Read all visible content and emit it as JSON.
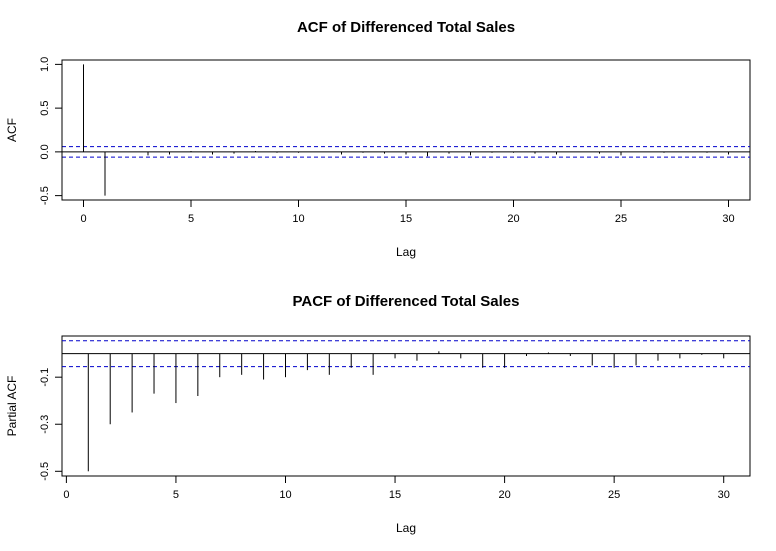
{
  "chart_data": [
    {
      "type": "bar",
      "title": "ACF of Differenced Total Sales",
      "xlabel": "Lag",
      "ylabel": "ACF",
      "xlim": [
        -1,
        31
      ],
      "ylim": [
        -0.55,
        1.05
      ],
      "xticks": [
        0,
        5,
        10,
        15,
        20,
        25,
        30
      ],
      "xtick_labels": [
        "0",
        "5",
        "10",
        "15",
        "20",
        "25",
        "30"
      ],
      "yticks": [
        -0.5,
        0.0,
        0.5,
        1.0
      ],
      "ytick_labels": [
        "-0.5",
        "0.0",
        "0.5",
        "1.0"
      ],
      "confidence_band": [
        -0.06,
        0.06
      ],
      "series": [
        {
          "lags": [
            0,
            1,
            2,
            3,
            4,
            5,
            6,
            7,
            8,
            9,
            10,
            11,
            12,
            13,
            14,
            15,
            16,
            17,
            18,
            19,
            20,
            21,
            22,
            23,
            24,
            25,
            26,
            27,
            28,
            29,
            30
          ],
          "values": [
            1.0,
            -0.5,
            0.0,
            -0.04,
            -0.03,
            0.01,
            -0.03,
            -0.02,
            0.01,
            -0.01,
            -0.01,
            0.0,
            -0.03,
            -0.01,
            -0.02,
            -0.03,
            -0.05,
            -0.02,
            -0.04,
            -0.01,
            -0.01,
            -0.02,
            -0.03,
            0.0,
            -0.02,
            -0.04,
            0.0,
            -0.01,
            0.0,
            -0.01,
            -0.03
          ]
        }
      ],
      "band_color": "#0000cc",
      "grid": false
    },
    {
      "type": "bar",
      "title": "PACF of Differenced Total Sales",
      "xlabel": "Lag",
      "ylabel": "Partial ACF",
      "xlim": [
        -0.2,
        31.2
      ],
      "ylim": [
        -0.52,
        0.075
      ],
      "xticks": [
        0,
        5,
        10,
        15,
        20,
        25,
        30
      ],
      "xtick_labels": [
        "0",
        "5",
        "10",
        "15",
        "20",
        "25",
        "30"
      ],
      "yticks": [
        -0.5,
        -0.3,
        -0.1
      ],
      "ytick_labels": [
        "-0.5",
        "-0.3",
        "-0.1"
      ],
      "confidence_band": [
        -0.055,
        0.055
      ],
      "series": [
        {
          "lags": [
            1,
            2,
            3,
            4,
            5,
            6,
            7,
            8,
            9,
            10,
            11,
            12,
            13,
            14,
            15,
            16,
            17,
            18,
            19,
            20,
            21,
            22,
            23,
            24,
            25,
            26,
            27,
            28,
            29,
            30
          ],
          "values": [
            -0.5,
            -0.3,
            -0.25,
            -0.17,
            -0.21,
            -0.18,
            -0.1,
            -0.09,
            -0.11,
            -0.1,
            -0.07,
            -0.09,
            -0.06,
            -0.09,
            -0.02,
            -0.03,
            0.01,
            -0.02,
            -0.06,
            -0.06,
            -0.01,
            0.005,
            -0.01,
            -0.05,
            -0.06,
            -0.05,
            -0.03,
            -0.02,
            -0.005,
            -0.02
          ]
        }
      ],
      "band_color": "#0000cc",
      "grid": false
    }
  ]
}
